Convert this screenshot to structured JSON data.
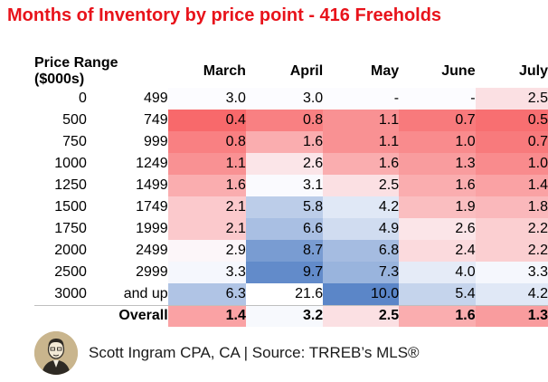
{
  "title": "Months of Inventory by price point - 416 Freeholds",
  "footer": {
    "text": "Scott Ingram CPA, CA | Source: TRREB’s MLS®"
  },
  "colors": {
    "title": "#e8131b",
    "high_value": "#5b86c8",
    "low_value": "#f8696b",
    "mid_value": "#fcfcff"
  },
  "chart_data": {
    "type": "table",
    "title": "Months of Inventory by price point - 416 Freeholds",
    "row_header": "Price Range ($000s)",
    "columns": [
      "March",
      "April",
      "May",
      "June",
      "July"
    ],
    "rows": [
      {
        "low": "0",
        "high": "499",
        "values": [
          "3.0",
          "3.0",
          "-",
          "-",
          "2.5"
        ]
      },
      {
        "low": "500",
        "high": "749",
        "values": [
          "0.4",
          "0.8",
          "1.1",
          "0.7",
          "0.5"
        ]
      },
      {
        "low": "750",
        "high": "999",
        "values": [
          "0.8",
          "1.6",
          "1.1",
          "1.0",
          "0.7"
        ]
      },
      {
        "low": "1000",
        "high": "1249",
        "values": [
          "1.1",
          "2.6",
          "1.6",
          "1.3",
          "1.0"
        ]
      },
      {
        "low": "1250",
        "high": "1499",
        "values": [
          "1.6",
          "3.1",
          "2.5",
          "1.6",
          "1.4"
        ]
      },
      {
        "low": "1500",
        "high": "1749",
        "values": [
          "2.1",
          "5.8",
          "4.2",
          "1.9",
          "1.8"
        ]
      },
      {
        "low": "1750",
        "high": "1999",
        "values": [
          "2.1",
          "6.6",
          "4.9",
          "2.6",
          "2.2"
        ]
      },
      {
        "low": "2000",
        "high": "2499",
        "values": [
          "2.9",
          "8.7",
          "6.8",
          "2.4",
          "2.2"
        ]
      },
      {
        "low": "2500",
        "high": "2999",
        "values": [
          "3.3",
          "9.7",
          "7.3",
          "4.0",
          "3.3"
        ]
      },
      {
        "low": "3000",
        "high": "and up",
        "values": [
          "6.3",
          "21.6",
          "10.0",
          "5.4",
          "4.2"
        ]
      }
    ],
    "overall": {
      "label": "Overall",
      "values": [
        "1.4",
        "3.2",
        "2.5",
        "1.6",
        "1.3"
      ]
    }
  }
}
